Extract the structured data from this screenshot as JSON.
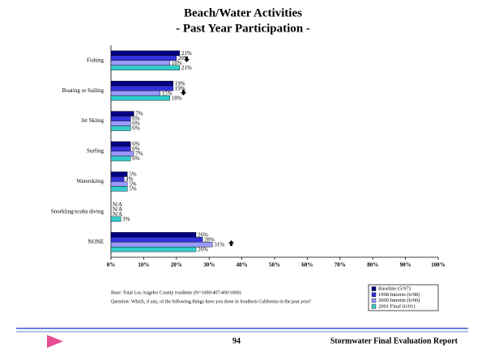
{
  "chart_data": {
    "type": "bar",
    "orientation": "horizontal",
    "title": "Beach/Water Activities",
    "subtitle": "- Past Year Participation -",
    "categories": [
      "Fishing",
      "Boating or Sailing",
      "Jet Skiing",
      "Surfing",
      "Waterskiing",
      "Snorkling/scuba diving",
      "NONE"
    ],
    "series": [
      {
        "name": "Baseline (5/97)",
        "color": "#000080",
        "values": [
          21,
          19,
          7,
          6,
          5,
          null,
          26
        ],
        "value_labels": [
          "21%",
          "19%",
          "7%",
          "6%",
          "5%",
          "N/A",
          "26%"
        ]
      },
      {
        "name": "1998 Interim (6/98)",
        "color": "#3333dd",
        "values": [
          20,
          19,
          6,
          6,
          4,
          null,
          28
        ],
        "value_labels": [
          "20%",
          "19%",
          "6%",
          "6%",
          "4%",
          "N/A",
          "28%"
        ]
      },
      {
        "name": "2000 Interim (6/00)",
        "color": "#9999ff",
        "values": [
          18,
          15,
          6,
          7,
          5,
          null,
          31
        ],
        "value_labels": [
          "18%",
          "15%",
          "6%",
          "7%",
          "5%",
          "N/A",
          "31%"
        ]
      },
      {
        "name": "2001 Final (6/01)",
        "color": "#33cccc",
        "values": [
          21,
          18,
          6,
          6,
          5,
          3,
          26
        ],
        "value_labels": [
          "21%",
          "18%",
          "6%",
          "6%",
          "5%",
          "3%",
          "26%"
        ]
      }
    ],
    "xlim": [
      0,
      100
    ],
    "xticks": [
      {
        "value": 0,
        "label": "0%"
      },
      {
        "value": 10,
        "label": "10%"
      },
      {
        "value": 20,
        "label": "20%"
      },
      {
        "value": 30,
        "label": "30%"
      },
      {
        "value": 40,
        "label": "40%"
      },
      {
        "value": 50,
        "label": "50%"
      },
      {
        "value": 60,
        "label": "60%"
      },
      {
        "value": 70,
        "label": "70%"
      },
      {
        "value": 80,
        "label": "80%"
      },
      {
        "value": 90,
        "label": "90%"
      },
      {
        "value": 100,
        "label": "100%"
      }
    ],
    "grid": false,
    "base_note": "Base: Total Los Angeles County residents (N=1000/407/400/1000)",
    "question_note": "Question: Which, if any, of the following things have you done in Southern California in the past year?"
  },
  "page": {
    "number": "94",
    "report_title": "Stormwater Final Evaluation Report"
  }
}
